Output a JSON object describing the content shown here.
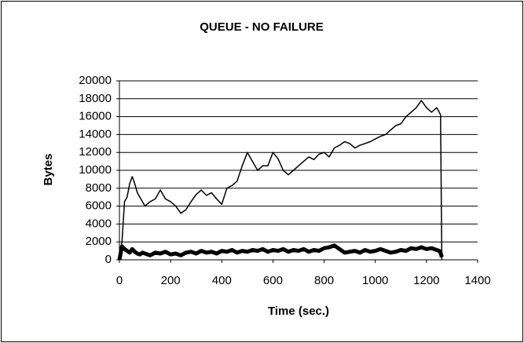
{
  "chart_data": {
    "type": "line",
    "title": "QUEUE - NO FAILURE",
    "xlabel": "Time (sec.)",
    "ylabel": "Bytes",
    "x": [
      0,
      10,
      20,
      30,
      40,
      50,
      60,
      70,
      80,
      90,
      100,
      120,
      140,
      160,
      180,
      200,
      220,
      240,
      260,
      280,
      300,
      320,
      340,
      360,
      380,
      400,
      420,
      440,
      460,
      480,
      500,
      520,
      540,
      560,
      580,
      600,
      620,
      640,
      660,
      680,
      700,
      720,
      740,
      760,
      780,
      800,
      820,
      840,
      860,
      880,
      900,
      920,
      940,
      960,
      980,
      1000,
      1020,
      1040,
      1060,
      1080,
      1100,
      1120,
      1140,
      1160,
      1180,
      1200,
      1220,
      1240,
      1250,
      1255,
      1260
    ],
    "series": [
      {
        "color": "#000000",
        "width": 1.5,
        "values": [
          0,
          2000,
          6500,
          7000,
          8500,
          9300,
          8500,
          7500,
          7000,
          6500,
          6000,
          6500,
          6800,
          7800,
          6800,
          6500,
          6000,
          5200,
          5600,
          6500,
          7300,
          7800,
          7200,
          7500,
          6800,
          6200,
          8000,
          8300,
          8800,
          10500,
          12000,
          11000,
          10000,
          10500,
          10500,
          12000,
          11300,
          10000,
          9500,
          10000,
          10500,
          11000,
          11500,
          11200,
          11800,
          12000,
          11500,
          12500,
          12800,
          13200,
          13000,
          12500,
          12800,
          13000,
          13200,
          13500,
          13800,
          14000,
          14500,
          15000,
          15200,
          16000,
          16500,
          17000,
          17800,
          17000,
          16500,
          17000,
          16500,
          16200,
          0
        ]
      },
      {
        "color": "#000000",
        "width": 5,
        "values": [
          0,
          1500,
          1200,
          1000,
          800,
          1200,
          900,
          700,
          600,
          800,
          700,
          500,
          800,
          700,
          900,
          600,
          700,
          500,
          800,
          900,
          700,
          1000,
          800,
          900,
          700,
          1000,
          900,
          1100,
          800,
          1000,
          900,
          1100,
          1000,
          1200,
          900,
          1100,
          1000,
          1200,
          900,
          1100,
          1000,
          1200,
          900,
          1100,
          1000,
          1300,
          1400,
          1600,
          1200,
          800,
          900,
          1000,
          800,
          1100,
          900,
          1000,
          1200,
          1000,
          800,
          900,
          1100,
          1000,
          1300,
          1200,
          1400,
          1200,
          1300,
          1100,
          1000,
          800,
          300
        ]
      }
    ],
    "xlim": [
      0,
      1400
    ],
    "xticks": [
      0,
      200,
      400,
      600,
      800,
      1000,
      1200,
      1400
    ],
    "ylim": [
      0,
      20000
    ],
    "yticks": [
      0,
      2000,
      4000,
      6000,
      8000,
      10000,
      12000,
      14000,
      16000,
      18000,
      20000
    ],
    "grid": true
  }
}
